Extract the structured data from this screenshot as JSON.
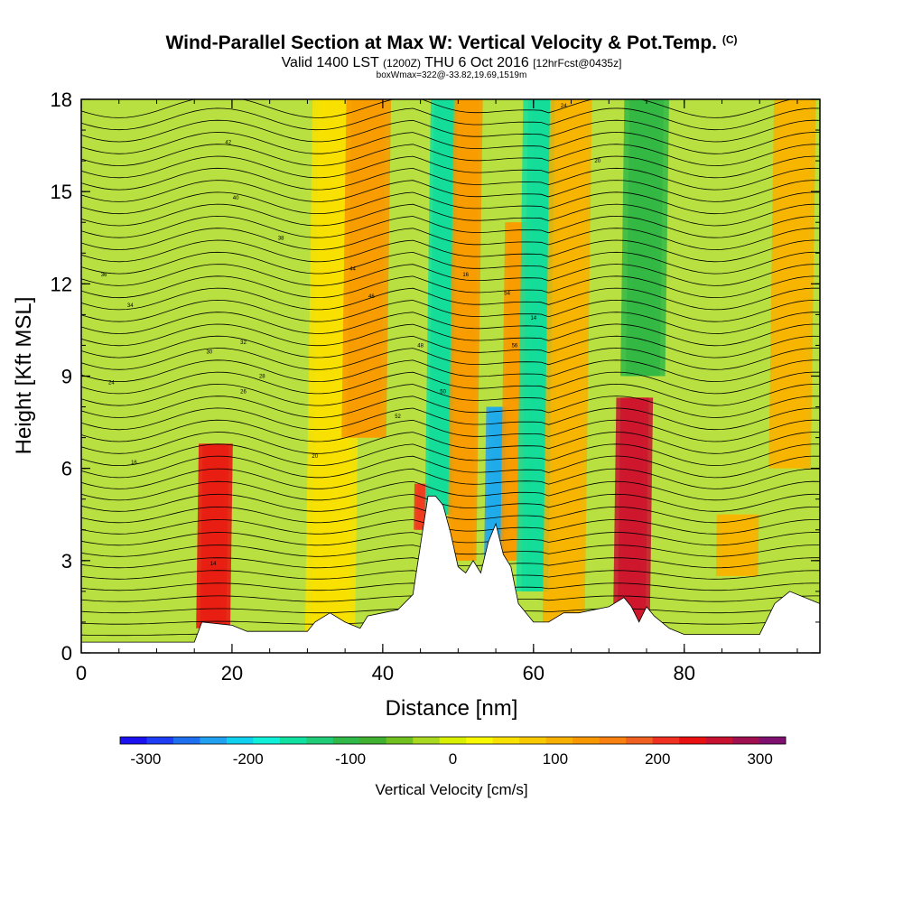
{
  "title": "Wind-Parallel Section at Max W: Vertical Velocity & Pot.Temp.",
  "title_mark": "(C)",
  "subtitle_main": "Valid 1400 LST",
  "subtitle_utc": "(1200Z)",
  "subtitle_date": "THU 6 Oct 2016",
  "subtitle_fcst": "[12hrFcst@0435z]",
  "subtitle_box": "boxWmax=322@-33.82,19.69,1519m",
  "chart_data": {
    "type": "heatmap",
    "xlabel": "Distance [nm]",
    "ylabel": "Height [Kft MSL]",
    "xlim": [
      0,
      98
    ],
    "ylim": [
      0,
      18
    ],
    "xticks": [
      0,
      20,
      40,
      60,
      80
    ],
    "yticks": [
      0,
      3,
      6,
      9,
      12,
      15,
      18
    ],
    "colorbar": {
      "label": "Vertical Velocity [cm/s]",
      "ticks": [
        -300,
        -200,
        -100,
        0,
        100,
        200,
        300
      ],
      "range": [
        -325,
        325
      ],
      "colors": [
        "#1a10f0",
        "#1f3cf5",
        "#1e6ef0",
        "#22a0f0",
        "#10d0f0",
        "#10f0d8",
        "#10e0a0",
        "#20cc78",
        "#30b848",
        "#40b030",
        "#70c020",
        "#a8d820",
        "#d8f000",
        "#f8f800",
        "#f8e000",
        "#f8c800",
        "#f8b000",
        "#f89800",
        "#f88010",
        "#f06020",
        "#f03020",
        "#e81010",
        "#c81030",
        "#a01050",
        "#801070"
      ]
    },
    "vertical_velocity_bands": [
      {
        "x": 17.5,
        "w": 1.2,
        "ymin": 0.8,
        "ymax": 6.8,
        "peak": 280
      },
      {
        "x": 33,
        "w": 1.8,
        "ymin": 0.5,
        "ymax": 18,
        "peak": 60
      },
      {
        "x": 37.5,
        "w": 1.6,
        "ymin": 7,
        "ymax": 18,
        "peak": 150
      },
      {
        "x": 45.5,
        "w": 0.7,
        "ymin": 4.0,
        "ymax": 5.5,
        "peak": 260
      },
      {
        "x": 47.5,
        "w": 1.0,
        "ymin": 4.5,
        "ymax": 18,
        "peak": -190
      },
      {
        "x": 50.5,
        "w": 1.0,
        "ymin": 3.0,
        "ymax": 18,
        "peak": 150
      },
      {
        "x": 55,
        "w": 0.8,
        "ymin": 3.0,
        "ymax": 8,
        "peak": -300
      },
      {
        "x": 57.5,
        "w": 1.0,
        "ymin": 3.0,
        "ymax": 14,
        "peak": 160
      },
      {
        "x": 60.5,
        "w": 1.5,
        "ymin": 2.0,
        "ymax": 18,
        "peak": -190
      },
      {
        "x": 64,
        "w": 1.5,
        "ymin": 1.0,
        "ymax": 18,
        "peak": 120
      },
      {
        "x": 73,
        "w": 1.3,
        "ymin": 1.0,
        "ymax": 8.3,
        "peak": 330
      },
      {
        "x": 74.5,
        "w": 1.6,
        "ymin": 9,
        "ymax": 18,
        "peak": -140
      },
      {
        "x": 87,
        "w": 1.5,
        "ymin": 2.5,
        "ymax": 4.5,
        "peak": 110
      },
      {
        "x": 94,
        "w": 1.5,
        "ymin": 6,
        "ymax": 18,
        "peak": 110
      }
    ],
    "terrain": [
      [
        0,
        0.35
      ],
      [
        15,
        0.35
      ],
      [
        16,
        1.0
      ],
      [
        20,
        0.9
      ],
      [
        22,
        0.7
      ],
      [
        30,
        0.7
      ],
      [
        31,
        1.0
      ],
      [
        33,
        1.3
      ],
      [
        35,
        1.0
      ],
      [
        37,
        0.8
      ],
      [
        38,
        1.2
      ],
      [
        40,
        1.3
      ],
      [
        42,
        1.4
      ],
      [
        44,
        1.9
      ],
      [
        45,
        3.5
      ],
      [
        46,
        5.1
      ],
      [
        47,
        5.1
      ],
      [
        48,
        4.8
      ],
      [
        49,
        3.9
      ],
      [
        50,
        2.8
      ],
      [
        51,
        2.6
      ],
      [
        52,
        3.0
      ],
      [
        53,
        2.6
      ],
      [
        54,
        3.6
      ],
      [
        55,
        4.2
      ],
      [
        56,
        3.2
      ],
      [
        57,
        2.8
      ],
      [
        58,
        1.6
      ],
      [
        60,
        1.0
      ],
      [
        62,
        1.0
      ],
      [
        64,
        1.3
      ],
      [
        66,
        1.3
      ],
      [
        70,
        1.5
      ],
      [
        72,
        1.8
      ],
      [
        73,
        1.5
      ],
      [
        74,
        1.0
      ],
      [
        75,
        1.5
      ],
      [
        76,
        1.2
      ],
      [
        78,
        0.8
      ],
      [
        80,
        0.6
      ],
      [
        90,
        0.6
      ],
      [
        92,
        1.6
      ],
      [
        94,
        2.0
      ],
      [
        97,
        1.7
      ],
      [
        98,
        1.6
      ]
    ],
    "isentrope_labels": [
      "14",
      "16",
      "20",
      "24",
      "26",
      "28",
      "30",
      "32",
      "34",
      "36",
      "38",
      "40",
      "42",
      "44",
      "46",
      "48",
      "50",
      "52",
      "54",
      "56"
    ]
  }
}
